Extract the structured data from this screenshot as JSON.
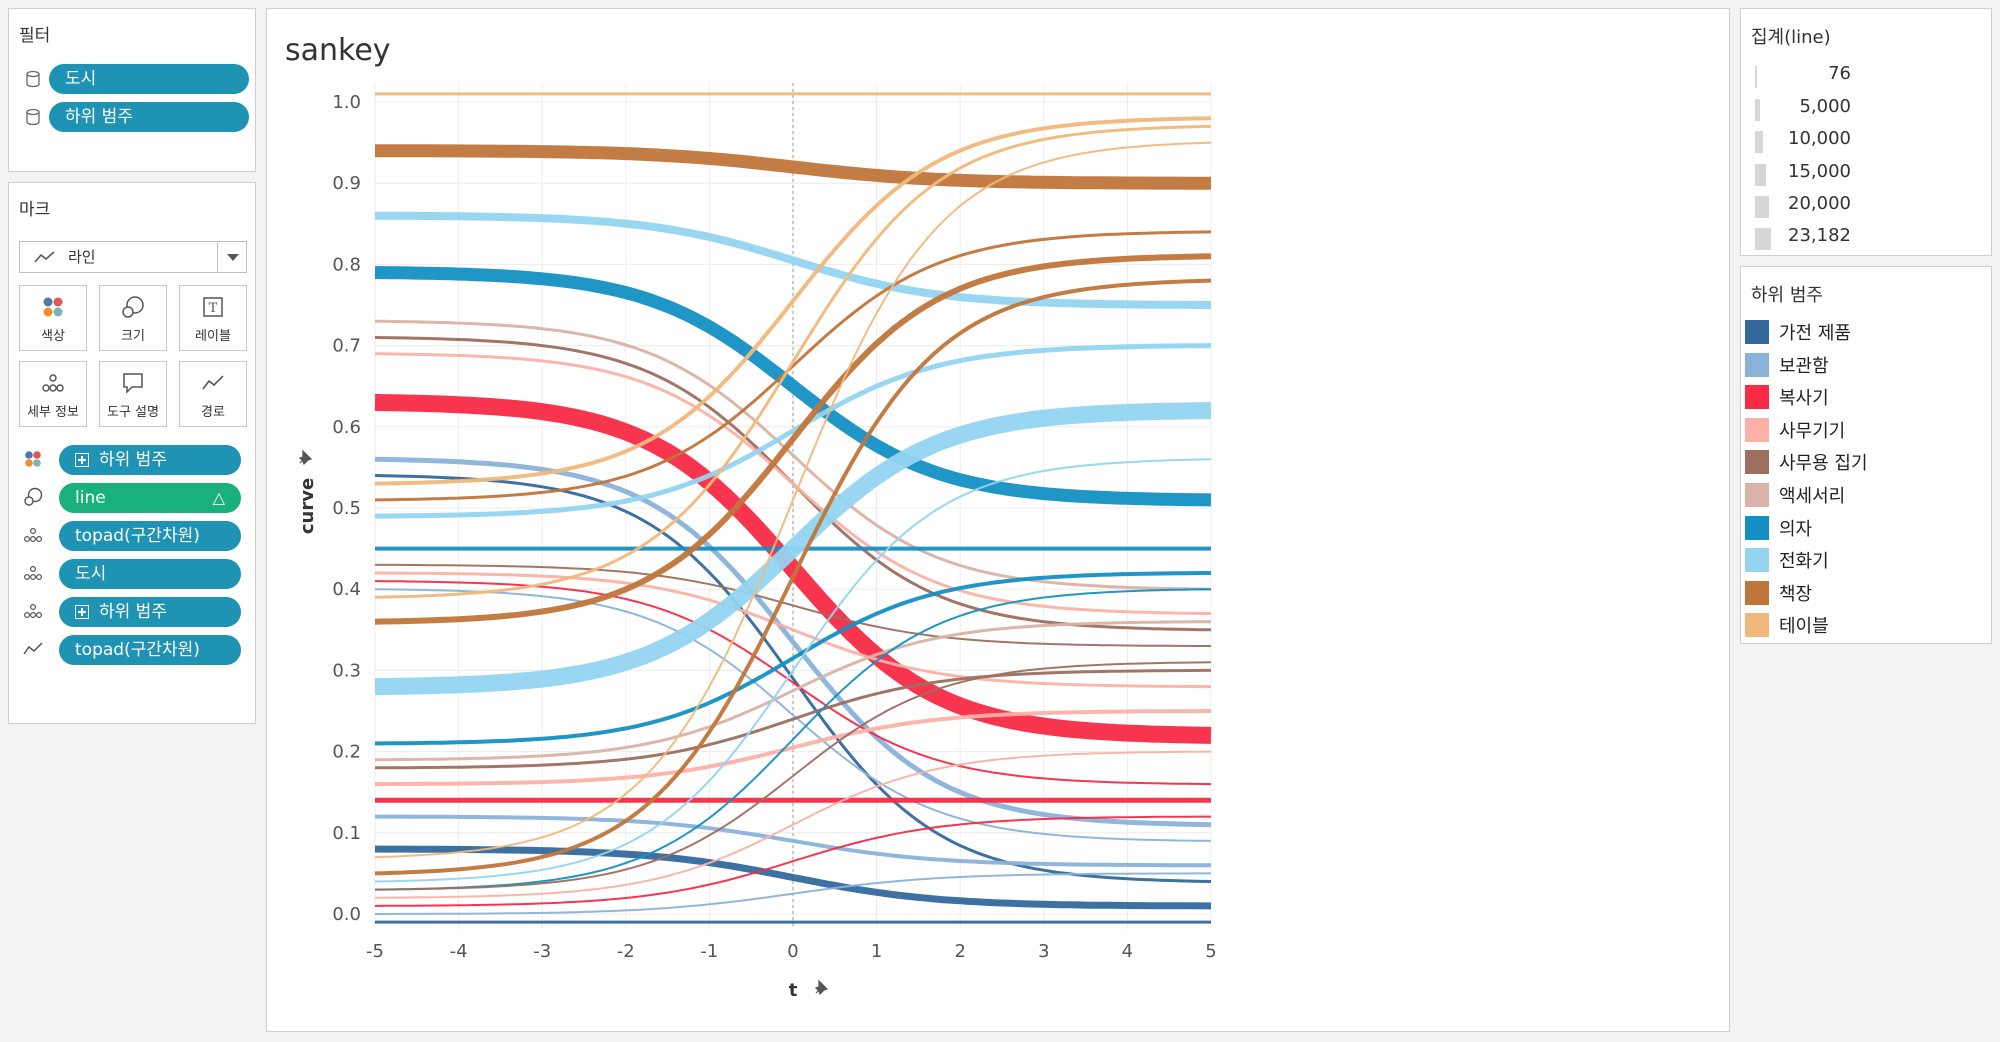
{
  "filters": {
    "title": "필터",
    "items": [
      {
        "label": "도시",
        "icon": "database-icon"
      },
      {
        "label": "하위 범주",
        "icon": "database-icon"
      }
    ]
  },
  "marks": {
    "title": "마크",
    "mark_type": "라인",
    "buttons": [
      {
        "label": "색상",
        "icon": "color-icon"
      },
      {
        "label": "크기",
        "icon": "size-icon"
      },
      {
        "label": "레이블",
        "icon": "label-icon"
      },
      {
        "label": "세부 정보",
        "icon": "detail-icon"
      },
      {
        "label": "도구 설명",
        "icon": "tooltip-icon"
      },
      {
        "label": "경로",
        "icon": "path-icon"
      }
    ],
    "shelf": [
      {
        "label": "하위 범주",
        "icon": "color-icon",
        "expand": true,
        "color": "#1f93b3"
      },
      {
        "label": "line",
        "icon": "size-icon",
        "delta": "△",
        "color": "#1ab07c"
      },
      {
        "label": "topad(구간차원)",
        "icon": "detail-icon",
        "color": "#1f93b3"
      },
      {
        "label": "도시",
        "icon": "detail-icon",
        "color": "#1f93b3"
      },
      {
        "label": "하위 범주",
        "icon": "detail-icon",
        "expand": true,
        "color": "#1f93b3"
      },
      {
        "label": "topad(구간차원)",
        "icon": "path-icon",
        "color": "#1f93b3"
      }
    ]
  },
  "chart_title": "sankey",
  "size_legend": {
    "title": "집계(line)",
    "values": [
      "76",
      "5,000",
      "10,000",
      "15,000",
      "20,000",
      "23,182"
    ]
  },
  "color_legend": {
    "title": "하위 범주",
    "items": [
      {
        "label": "가전 제품",
        "color": "#33699c"
      },
      {
        "label": "보관함",
        "color": "#8ab2d9"
      },
      {
        "label": "복사기",
        "color": "#f82a44"
      },
      {
        "label": "사무기기",
        "color": "#fbb1a5"
      },
      {
        "label": "사무용 집기",
        "color": "#9c6f5f"
      },
      {
        "label": "액세서리",
        "color": "#d9b3a7"
      },
      {
        "label": "의자",
        "color": "#1390c3"
      },
      {
        "label": "전화기",
        "color": "#94d4f0"
      },
      {
        "label": "책장",
        "color": "#c0763a"
      },
      {
        "label": "테이블",
        "color": "#f0b87c"
      }
    ]
  },
  "chart_data": {
    "type": "line",
    "xlabel": "t",
    "ylabel": "curve",
    "xlim": [
      -5,
      5
    ],
    "ylim": [
      0.0,
      1.0
    ],
    "x_ticks": [
      "-5",
      "-4",
      "-3",
      "-2",
      "-1",
      "0",
      "1",
      "2",
      "3",
      "4",
      "5"
    ],
    "y_ticks": [
      "0.0",
      "0.1",
      "0.2",
      "0.3",
      "0.4",
      "0.5",
      "0.6",
      "0.7",
      "0.8",
      "0.9",
      "1.0"
    ],
    "grid": true,
    "curve": "sigmoid",
    "series": [
      {
        "category": "테이블",
        "y_start": 1.01,
        "y_end": 1.01,
        "width": 3
      },
      {
        "category": "책장",
        "y_start": 0.94,
        "y_end": 0.9,
        "width": 13
      },
      {
        "category": "전화기",
        "y_start": 0.86,
        "y_end": 0.75,
        "width": 8
      },
      {
        "category": "의자",
        "y_start": 0.79,
        "y_end": 0.51,
        "width": 13
      },
      {
        "category": "액세서리",
        "y_start": 0.73,
        "y_end": 0.4,
        "width": 3
      },
      {
        "category": "사무용 집기",
        "y_start": 0.71,
        "y_end": 0.35,
        "width": 3
      },
      {
        "category": "사무기기",
        "y_start": 0.69,
        "y_end": 0.37,
        "width": 3
      },
      {
        "category": "복사기",
        "y_start": 0.63,
        "y_end": 0.22,
        "width": 17
      },
      {
        "category": "보관함",
        "y_start": 0.56,
        "y_end": 0.11,
        "width": 5
      },
      {
        "category": "가전 제품",
        "y_start": 0.54,
        "y_end": 0.04,
        "width": 3
      },
      {
        "category": "테이블",
        "y_start": 0.53,
        "y_end": 0.98,
        "width": 4
      },
      {
        "category": "책장",
        "y_start": 0.51,
        "y_end": 0.84,
        "width": 3
      },
      {
        "category": "전화기",
        "y_start": 0.49,
        "y_end": 0.7,
        "width": 5
      },
      {
        "category": "의자",
        "y_start": 0.45,
        "y_end": 0.45,
        "width": 4
      },
      {
        "category": "사무용 집기",
        "y_start": 0.43,
        "y_end": 0.33,
        "width": 2
      },
      {
        "category": "사무기기",
        "y_start": 0.42,
        "y_end": 0.28,
        "width": 3
      },
      {
        "category": "복사기",
        "y_start": 0.41,
        "y_end": 0.16,
        "width": 2
      },
      {
        "category": "보관함",
        "y_start": 0.4,
        "y_end": 0.09,
        "width": 2
      },
      {
        "category": "테이블",
        "y_start": 0.39,
        "y_end": 0.97,
        "width": 3
      },
      {
        "category": "책장",
        "y_start": 0.36,
        "y_end": 0.81,
        "width": 6
      },
      {
        "category": "전화기",
        "y_start": 0.28,
        "y_end": 0.62,
        "width": 17
      },
      {
        "category": "의자",
        "y_start": 0.21,
        "y_end": 0.42,
        "width": 4
      },
      {
        "category": "액세서리",
        "y_start": 0.19,
        "y_end": 0.36,
        "width": 3
      },
      {
        "category": "사무용 집기",
        "y_start": 0.18,
        "y_end": 0.3,
        "width": 3
      },
      {
        "category": "사무기기",
        "y_start": 0.16,
        "y_end": 0.25,
        "width": 4
      },
      {
        "category": "복사기",
        "y_start": 0.14,
        "y_end": 0.14,
        "width": 5
      },
      {
        "category": "보관함",
        "y_start": 0.12,
        "y_end": 0.06,
        "width": 4
      },
      {
        "category": "가전 제품",
        "y_start": 0.08,
        "y_end": 0.01,
        "width": 7
      },
      {
        "category": "테이블",
        "y_start": 0.07,
        "y_end": 0.95,
        "width": 2
      },
      {
        "category": "책장",
        "y_start": 0.05,
        "y_end": 0.78,
        "width": 4
      },
      {
        "category": "전화기",
        "y_start": 0.04,
        "y_end": 0.56,
        "width": 2
      },
      {
        "category": "의자",
        "y_start": 0.03,
        "y_end": 0.4,
        "width": 2
      },
      {
        "category": "사무용 집기",
        "y_start": 0.03,
        "y_end": 0.31,
        "width": 2
      },
      {
        "category": "사무기기",
        "y_start": 0.02,
        "y_end": 0.2,
        "width": 2
      },
      {
        "category": "복사기",
        "y_start": 0.01,
        "y_end": 0.12,
        "width": 2
      },
      {
        "category": "보관함",
        "y_start": 0.0,
        "y_end": 0.05,
        "width": 2
      },
      {
        "category": "가전 제품",
        "y_start": -0.01,
        "y_end": -0.01,
        "width": 3
      }
    ]
  }
}
